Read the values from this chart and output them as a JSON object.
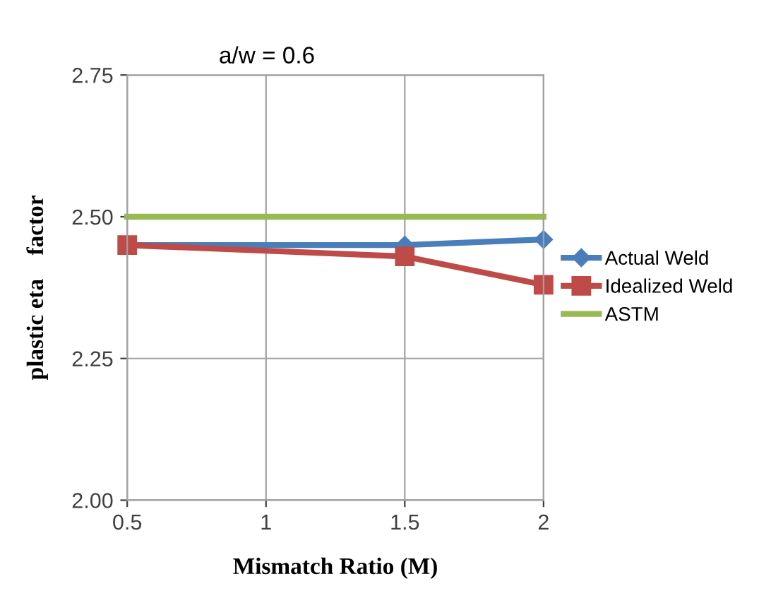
{
  "chart_data": {
    "type": "line",
    "title": "a/w = 0.6",
    "xlabel": "Mismatch Ratio (M)",
    "ylabel": "plastic eta    factor",
    "xlim": [
      0.5,
      2
    ],
    "xticks": [
      0.5,
      1,
      1.5,
      2
    ],
    "ylim": [
      2.0,
      2.75
    ],
    "yticks": [
      {
        "value": 2.0,
        "label": "2.00"
      },
      {
        "value": 2.25,
        "label": "2.25"
      },
      {
        "value": 2.5,
        "label": "2.50"
      },
      {
        "value": 2.75,
        "label": "2.75"
      }
    ],
    "grid": true,
    "legend": "right",
    "series": [
      {
        "name": "Actual Weld",
        "color": "#4a7ebb",
        "marker": "diamond",
        "x": [
          0.5,
          1.5,
          2
        ],
        "values": [
          2.45,
          2.45,
          2.46
        ]
      },
      {
        "name": "Idealized Weld",
        "color": "#be4b48",
        "marker": "square",
        "x": [
          0.5,
          1.5,
          2
        ],
        "values": [
          2.45,
          2.43,
          2.38
        ]
      },
      {
        "name": "ASTM",
        "color": "#98b954",
        "marker": "none",
        "x": [
          0.5,
          1.5,
          2
        ],
        "values": [
          2.5,
          2.5,
          2.5
        ]
      }
    ]
  }
}
